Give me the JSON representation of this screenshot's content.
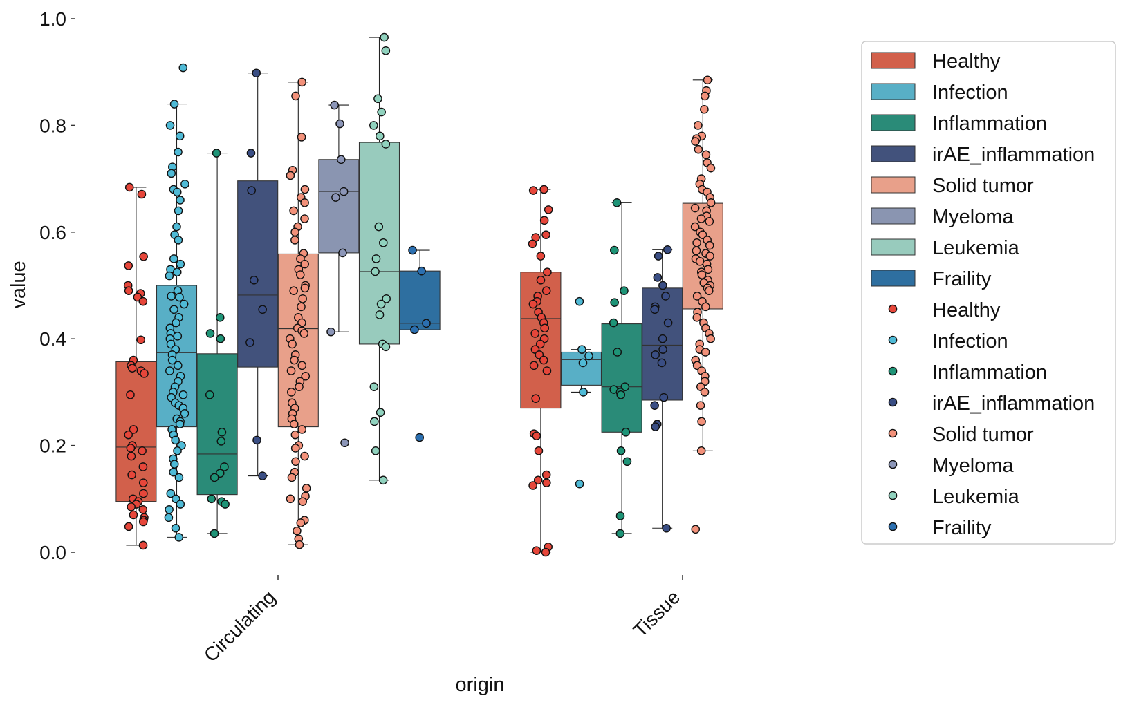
{
  "chart_data": {
    "type": "box+strip",
    "xlabel": "origin",
    "ylabel": "value",
    "ylim": [
      -0.03,
      1.0
    ],
    "yticks": [
      0.0,
      0.2,
      0.4,
      0.6,
      0.8,
      1.0
    ],
    "ytick_labels": [
      "0.0",
      "0.2",
      "0.4",
      "0.6",
      "0.8",
      "1.0"
    ],
    "categories": [
      "Circulating",
      "Tissue"
    ],
    "hue_order": [
      "Healthy",
      "Infection",
      "Inflammation",
      "irAE_inflammation",
      "Solid tumor",
      "Myeloma",
      "Leukemia",
      "Fraility"
    ],
    "colors": {
      "Healthy": "#D2604B",
      "Infection": "#58AFC6",
      "Inflammation": "#2A8B78",
      "irAE_inflammation": "#42527C",
      "Solid tumor": "#E8A08A",
      "Myeloma": "#8A95B1",
      "Leukemia": "#98CBBD",
      "Fraility": "#2E6FA0"
    },
    "point_colors": {
      "Healthy": "#E6463A",
      "Infection": "#4FBAD6",
      "Inflammation": "#1E9477",
      "irAE_inflammation": "#3A4E84",
      "Solid tumor": "#F2917A",
      "Myeloma": "#8C96B8",
      "Leukemia": "#90D2BE",
      "Fraility": "#2B6FB0"
    },
    "legend_box_labels": [
      "Healthy",
      "Infection",
      "Inflammation",
      "irAE_inflammation",
      "Solid tumor",
      "Myeloma",
      "Leukemia",
      "Fraility"
    ],
    "legend_point_labels": [
      "Healthy",
      "Infection",
      "Inflammation",
      "irAE_inflammation",
      "Solid tumor",
      "Myeloma",
      "Leukemia",
      "Fraility"
    ],
    "legend_position": "upper right, outside plot",
    "boxes": [
      {
        "category": "Circulating",
        "hue": "Healthy",
        "q1": 0.095,
        "median": 0.197,
        "q3": 0.357,
        "whisker_low": 0.013,
        "whisker_high": 0.684
      },
      {
        "category": "Circulating",
        "hue": "Infection",
        "q1": 0.235,
        "median": 0.374,
        "q3": 0.5,
        "whisker_low": 0.028,
        "whisker_high": 0.84
      },
      {
        "category": "Circulating",
        "hue": "Inflammation",
        "q1": 0.108,
        "median": 0.184,
        "q3": 0.372,
        "whisker_low": 0.035,
        "whisker_high": 0.748
      },
      {
        "category": "Circulating",
        "hue": "irAE_inflammation",
        "q1": 0.347,
        "median": 0.482,
        "q3": 0.696,
        "whisker_low": 0.143,
        "whisker_high": 0.898
      },
      {
        "category": "Circulating",
        "hue": "Solid tumor",
        "q1": 0.235,
        "median": 0.419,
        "q3": 0.559,
        "whisker_low": 0.014,
        "whisker_high": 0.881
      },
      {
        "category": "Circulating",
        "hue": "Myeloma",
        "q1": 0.561,
        "median": 0.676,
        "q3": 0.736,
        "whisker_low": 0.413,
        "whisker_high": 0.838
      },
      {
        "category": "Circulating",
        "hue": "Leukemia",
        "q1": 0.39,
        "median": 0.526,
        "q3": 0.768,
        "whisker_low": 0.135,
        "whisker_high": 0.965
      },
      {
        "category": "Circulating",
        "hue": "Fraility",
        "q1": 0.417,
        "median": 0.429,
        "q3": 0.527,
        "whisker_low": 0.417,
        "whisker_high": 0.566
      },
      {
        "category": "Tissue",
        "hue": "Healthy",
        "q1": 0.27,
        "median": 0.438,
        "q3": 0.525,
        "whisker_low": 0.0,
        "whisker_high": 0.68
      },
      {
        "category": "Tissue",
        "hue": "Infection",
        "q1": 0.313,
        "median": 0.361,
        "q3": 0.375,
        "whisker_low": 0.3,
        "whisker_high": 0.38
      },
      {
        "category": "Tissue",
        "hue": "Inflammation",
        "q1": 0.225,
        "median": 0.31,
        "q3": 0.428,
        "whisker_low": 0.035,
        "whisker_high": 0.655
      },
      {
        "category": "Tissue",
        "hue": "irAE_inflammation",
        "q1": 0.285,
        "median": 0.388,
        "q3": 0.495,
        "whisker_low": 0.045,
        "whisker_high": 0.567
      },
      {
        "category": "Tissue",
        "hue": "Solid tumor",
        "q1": 0.456,
        "median": 0.568,
        "q3": 0.654,
        "whisker_low": 0.19,
        "whisker_high": 0.885
      }
    ],
    "points": {
      "Circulating|Healthy": [
        0.684,
        0.671,
        0.554,
        0.537,
        0.5,
        0.49,
        0.485,
        0.478,
        0.47,
        0.398,
        0.36,
        0.35,
        0.345,
        0.34,
        0.335,
        0.295,
        0.23,
        0.22,
        0.2,
        0.195,
        0.19,
        0.18,
        0.16,
        0.145,
        0.13,
        0.11,
        0.1,
        0.095,
        0.09,
        0.085,
        0.08,
        0.07,
        0.065,
        0.06,
        0.057,
        0.048,
        0.013
      ],
      "Circulating|Infection": [
        0.908,
        0.84,
        0.8,
        0.78,
        0.75,
        0.722,
        0.71,
        0.69,
        0.68,
        0.675,
        0.66,
        0.64,
        0.61,
        0.595,
        0.585,
        0.55,
        0.54,
        0.53,
        0.525,
        0.518,
        0.49,
        0.48,
        0.478,
        0.465,
        0.455,
        0.44,
        0.43,
        0.42,
        0.41,
        0.405,
        0.4,
        0.39,
        0.38,
        0.37,
        0.36,
        0.35,
        0.34,
        0.33,
        0.32,
        0.31,
        0.3,
        0.295,
        0.29,
        0.28,
        0.275,
        0.27,
        0.26,
        0.25,
        0.245,
        0.24,
        0.23,
        0.22,
        0.21,
        0.2,
        0.19,
        0.175,
        0.165,
        0.15,
        0.14,
        0.11,
        0.1,
        0.09,
        0.08,
        0.065,
        0.045,
        0.028
      ],
      "Circulating|Inflammation": [
        0.748,
        0.44,
        0.41,
        0.4,
        0.295,
        0.225,
        0.208,
        0.16,
        0.148,
        0.14,
        0.1,
        0.095,
        0.09,
        0.035
      ],
      "Circulating|irAE_inflammation": [
        0.898,
        0.748,
        0.678,
        0.51,
        0.455,
        0.393,
        0.21,
        0.143
      ],
      "Circulating|Solid tumor": [
        0.881,
        0.855,
        0.778,
        0.716,
        0.706,
        0.68,
        0.665,
        0.655,
        0.64,
        0.625,
        0.61,
        0.6,
        0.585,
        0.56,
        0.55,
        0.54,
        0.53,
        0.52,
        0.5,
        0.495,
        0.49,
        0.475,
        0.46,
        0.44,
        0.43,
        0.42,
        0.415,
        0.41,
        0.4,
        0.39,
        0.37,
        0.36,
        0.35,
        0.34,
        0.33,
        0.32,
        0.31,
        0.3,
        0.28,
        0.27,
        0.26,
        0.25,
        0.24,
        0.23,
        0.22,
        0.2,
        0.195,
        0.18,
        0.17,
        0.15,
        0.14,
        0.12,
        0.105,
        0.1,
        0.095,
        0.06,
        0.055,
        0.04,
        0.025,
        0.014
      ],
      "Circulating|Myeloma": [
        0.838,
        0.803,
        0.736,
        0.676,
        0.665,
        0.561,
        0.413,
        0.205
      ],
      "Circulating|Leukemia": [
        0.965,
        0.94,
        0.85,
        0.825,
        0.8,
        0.78,
        0.765,
        0.61,
        0.58,
        0.55,
        0.526,
        0.475,
        0.465,
        0.445,
        0.39,
        0.385,
        0.31,
        0.262,
        0.245,
        0.19,
        0.135
      ],
      "Circulating|Fraility": [
        0.566,
        0.527,
        0.429,
        0.417,
        0.215
      ],
      "Tissue|Healthy": [
        0.68,
        0.678,
        0.642,
        0.622,
        0.595,
        0.59,
        0.578,
        0.555,
        0.525,
        0.51,
        0.49,
        0.48,
        0.47,
        0.465,
        0.45,
        0.44,
        0.43,
        0.42,
        0.41,
        0.4,
        0.39,
        0.38,
        0.37,
        0.36,
        0.35,
        0.34,
        0.288,
        0.222,
        0.218,
        0.19,
        0.145,
        0.135,
        0.13,
        0.125,
        0.01,
        0.003,
        0.0
      ],
      "Tissue|Infection": [
        0.47,
        0.38,
        0.368,
        0.355,
        0.3,
        0.128
      ],
      "Tissue|Inflammation": [
        0.655,
        0.566,
        0.49,
        0.468,
        0.43,
        0.375,
        0.31,
        0.305,
        0.3,
        0.295,
        0.225,
        0.19,
        0.17,
        0.068,
        0.035
      ],
      "Tissue|irAE_inflammation": [
        0.567,
        0.555,
        0.515,
        0.5,
        0.48,
        0.46,
        0.455,
        0.43,
        0.4,
        0.38,
        0.37,
        0.355,
        0.29,
        0.275,
        0.24,
        0.235,
        0.045
      ],
      "Tissue|Solid tumor": [
        0.885,
        0.865,
        0.855,
        0.83,
        0.8,
        0.78,
        0.775,
        0.77,
        0.755,
        0.745,
        0.73,
        0.72,
        0.7,
        0.69,
        0.68,
        0.675,
        0.665,
        0.655,
        0.645,
        0.64,
        0.63,
        0.625,
        0.62,
        0.61,
        0.6,
        0.595,
        0.585,
        0.58,
        0.575,
        0.565,
        0.56,
        0.555,
        0.55,
        0.545,
        0.54,
        0.53,
        0.525,
        0.52,
        0.51,
        0.505,
        0.5,
        0.495,
        0.49,
        0.48,
        0.47,
        0.46,
        0.45,
        0.44,
        0.43,
        0.42,
        0.41,
        0.4,
        0.39,
        0.38,
        0.375,
        0.36,
        0.35,
        0.34,
        0.33,
        0.32,
        0.31,
        0.3,
        0.275,
        0.245,
        0.19,
        0.043
      ]
    }
  }
}
